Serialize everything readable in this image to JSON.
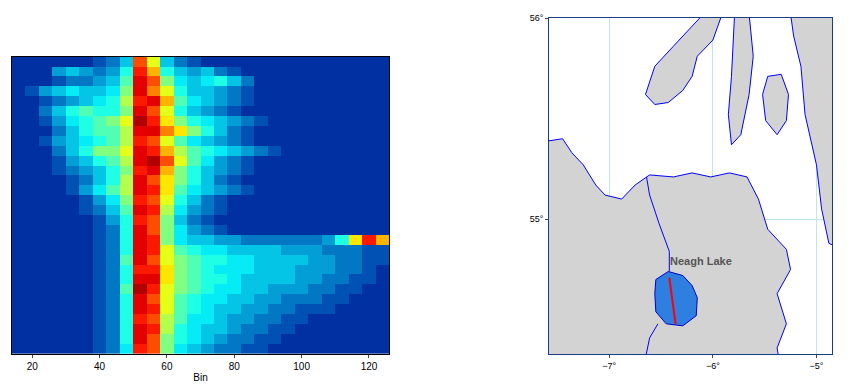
{
  "chart_data": [
    {
      "type": "heatmap",
      "xlabel": "Bin",
      "x": [
        16,
        20,
        24,
        28,
        32,
        36,
        40,
        44,
        48,
        52,
        56,
        60,
        64,
        68,
        72,
        76,
        80,
        84,
        88,
        92,
        96,
        100,
        104,
        108,
        112,
        116,
        120,
        124
      ],
      "xlim": [
        14,
        126
      ],
      "xticks": [
        20,
        40,
        60,
        80,
        100,
        120
      ],
      "ylim": [
        29.5,
        -0.5
      ],
      "tick_labels": "x",
      "zlim": [
        0,
        10
      ],
      "cells": [
        [
          1,
          1,
          1,
          1,
          1,
          1,
          1.5,
          2,
          3,
          8,
          6,
          3,
          2,
          1.5,
          1,
          1,
          1,
          1,
          1,
          1,
          1,
          1,
          1,
          1,
          1,
          1,
          1,
          1
        ],
        [
          1,
          1,
          1,
          2.5,
          3,
          2.5,
          2,
          2.5,
          4,
          8.5,
          7,
          4,
          3,
          2.5,
          3,
          2,
          1.5,
          1,
          1,
          1,
          1,
          1,
          1,
          1,
          1,
          1,
          1,
          1
        ],
        [
          1,
          1,
          1,
          1.5,
          2,
          2,
          2.5,
          3,
          4.5,
          9,
          8,
          5,
          3.5,
          3,
          3.5,
          4,
          3,
          2,
          1,
          1,
          1,
          1,
          1,
          1,
          1,
          1,
          1,
          1
        ],
        [
          1,
          1.5,
          2.5,
          3,
          3.5,
          3,
          3,
          3.5,
          5,
          9,
          7.5,
          6,
          4,
          3,
          3,
          2.5,
          2,
          1.5,
          1,
          1,
          1,
          1,
          1,
          1,
          1,
          1,
          1,
          1
        ],
        [
          1,
          1,
          1.5,
          2,
          2.5,
          3,
          3.5,
          4,
          5.5,
          8.5,
          9,
          7,
          4.5,
          3.5,
          3,
          2.5,
          2,
          1.5,
          1,
          1,
          1,
          1,
          1,
          1,
          1,
          1,
          1,
          1
        ],
        [
          1,
          1,
          2,
          3,
          4,
          4.5,
          4,
          4,
          5,
          9,
          8,
          6,
          4,
          3,
          2.5,
          2,
          1.5,
          1,
          1,
          1,
          1,
          1,
          1,
          1,
          1,
          1,
          1,
          1
        ],
        [
          1,
          1,
          1.5,
          2.5,
          3.5,
          4,
          4.5,
          5,
          6,
          9.5,
          8.5,
          6.5,
          5,
          4,
          3.5,
          3,
          2.5,
          2,
          1.5,
          1,
          1,
          1,
          1,
          1,
          1,
          1,
          1,
          1
        ],
        [
          1,
          1,
          1,
          2,
          3,
          4,
          4.5,
          4.5,
          5.5,
          9,
          9,
          7.5,
          6.5,
          5,
          4,
          3,
          2,
          1.5,
          1,
          1,
          1,
          1,
          1,
          1,
          1,
          1,
          1,
          1
        ],
        [
          1,
          1,
          1.5,
          2.5,
          3,
          3.5,
          4,
          4.5,
          5.5,
          8.5,
          8,
          6,
          4.5,
          3.5,
          3,
          2.5,
          2,
          1.5,
          1,
          1,
          1,
          1,
          1,
          1,
          1,
          1,
          1,
          1
        ],
        [
          1,
          1,
          1,
          2,
          3,
          4,
          5,
          5,
          6,
          9,
          8.5,
          7,
          5.5,
          4.5,
          4,
          3.5,
          3,
          2.5,
          2,
          1.5,
          1,
          1,
          1,
          1,
          1,
          1,
          1,
          1
        ],
        [
          1,
          1,
          1,
          1.5,
          2.5,
          3,
          4,
          4.5,
          5.5,
          9,
          9.5,
          8,
          6,
          4.5,
          3.5,
          2.5,
          2,
          1.5,
          1,
          1,
          1,
          1,
          1,
          1,
          1,
          1,
          1,
          1
        ],
        [
          1,
          1,
          1,
          1.5,
          2,
          2.5,
          3,
          4,
          5,
          8.5,
          9,
          7,
          5,
          4,
          3,
          2.5,
          2,
          1.5,
          1,
          1,
          1,
          1,
          1,
          1,
          1,
          1,
          1,
          1
        ],
        [
          1,
          1,
          1,
          1,
          1.5,
          2,
          3,
          4,
          5.5,
          9,
          8,
          6.5,
          5,
          4,
          3,
          2,
          1.5,
          1,
          1,
          1,
          1,
          1,
          1,
          1,
          1,
          1,
          1,
          1
        ],
        [
          1,
          1,
          1,
          1,
          1.5,
          2.5,
          3.5,
          4.5,
          5.5,
          9,
          8.5,
          6.5,
          4.5,
          3.5,
          3,
          2.5,
          2,
          1.5,
          1,
          1,
          1,
          1,
          1,
          1,
          1,
          1,
          1,
          1
        ],
        [
          1,
          1,
          1,
          1,
          1,
          1.5,
          2.5,
          3.5,
          5,
          8.5,
          8,
          6,
          4,
          3,
          2,
          1.5,
          1,
          1,
          1,
          1,
          1,
          1,
          1,
          1,
          1,
          1,
          1,
          1
        ],
        [
          1,
          1,
          1,
          1,
          1,
          1.5,
          2,
          3,
          4.5,
          9,
          8.5,
          5.5,
          3.5,
          2.5,
          2,
          1.5,
          1,
          1,
          1,
          1,
          1,
          1,
          1,
          1,
          1,
          1,
          1,
          1
        ],
        [
          1,
          1,
          1,
          1,
          1,
          1,
          1.5,
          2.5,
          4,
          8.5,
          8,
          5,
          3,
          2,
          1.5,
          1,
          1,
          1,
          1,
          1,
          1,
          1,
          1,
          1,
          1,
          1,
          1,
          1
        ],
        [
          1,
          1,
          1,
          1,
          1,
          1,
          1.5,
          2,
          4,
          9,
          8,
          5,
          3.5,
          2.5,
          2,
          1.5,
          1,
          1,
          1,
          1,
          1,
          1,
          1,
          1,
          1,
          1,
          1,
          1
        ],
        [
          1,
          1,
          1,
          1,
          1,
          1,
          1.5,
          2,
          4,
          9,
          8.5,
          5,
          3.5,
          3,
          3,
          2.5,
          2.5,
          2,
          2,
          2,
          2,
          2,
          2,
          2.5,
          4,
          6.5,
          8.5,
          7
        ],
        [
          1,
          1,
          1,
          1,
          1,
          1,
          1.5,
          2,
          4,
          9,
          8.5,
          6,
          4.5,
          4,
          3.5,
          3.5,
          3,
          3,
          3,
          3,
          2.5,
          2.5,
          2.5,
          2,
          2,
          2,
          1.5,
          1.5
        ],
        [
          1,
          1,
          1,
          1,
          1,
          1,
          1.5,
          2,
          4.5,
          9,
          8,
          6,
          5,
          4.5,
          4,
          4,
          3.5,
          3.5,
          3,
          3,
          3,
          3,
          2.5,
          2.5,
          2,
          2,
          1.5,
          1.5
        ],
        [
          1,
          1,
          1,
          1,
          1,
          1,
          1.5,
          2,
          4,
          8.5,
          8.5,
          6.5,
          5,
          4.5,
          4,
          3.5,
          3.5,
          3.5,
          3,
          3,
          3,
          2.5,
          2.5,
          2.5,
          2,
          2,
          1.5,
          1
        ],
        [
          1,
          1,
          1,
          1,
          1,
          1,
          1.5,
          2,
          4,
          9,
          9,
          6.5,
          5,
          4.5,
          4,
          4,
          3.5,
          3,
          3,
          3,
          3,
          2.5,
          2.5,
          2,
          2,
          1.5,
          1.5,
          1
        ],
        [
          1,
          1,
          1,
          1,
          1,
          1,
          1.5,
          2,
          4.5,
          9.5,
          8.5,
          6,
          5,
          4.5,
          4,
          3.5,
          3.5,
          3,
          3,
          2.5,
          2.5,
          2.5,
          2,
          2,
          1.5,
          1.5,
          1,
          1
        ],
        [
          1,
          1,
          1,
          1,
          1,
          1,
          1.5,
          2,
          4,
          9,
          8,
          6,
          4.5,
          4,
          3.5,
          3.5,
          3,
          3,
          2.5,
          2.5,
          2,
          2,
          2,
          1.5,
          1.5,
          1,
          1,
          1
        ],
        [
          1,
          1,
          1,
          1,
          1,
          1,
          1.5,
          2,
          4,
          9,
          8.5,
          6,
          4.5,
          4,
          3.5,
          3,
          3,
          2.5,
          2.5,
          2,
          2,
          1.5,
          1.5,
          1.5,
          1,
          1,
          1,
          1
        ],
        [
          1,
          1,
          1,
          1,
          1,
          1,
          1.5,
          2,
          4,
          8.5,
          8,
          5.5,
          4.5,
          3.5,
          3.5,
          3,
          2.5,
          2.5,
          2,
          2,
          1.5,
          1.5,
          1,
          1,
          1,
          1,
          1,
          1
        ],
        [
          1,
          1,
          1,
          1,
          1,
          1,
          1.5,
          2,
          4,
          9,
          8.5,
          5.5,
          4,
          3.5,
          3,
          3,
          2.5,
          2,
          2,
          1.5,
          1.5,
          1,
          1,
          1,
          1,
          1,
          1,
          1
        ],
        [
          1,
          1,
          1,
          1,
          1,
          1,
          1.5,
          2,
          4,
          9,
          8,
          5,
          4,
          3.5,
          3,
          2.5,
          2,
          2,
          1.5,
          1.5,
          1,
          1,
          1,
          1,
          1,
          1,
          1,
          1
        ],
        [
          1,
          1,
          1,
          1,
          1,
          1,
          1.5,
          2,
          3.5,
          8.5,
          8,
          5,
          3.5,
          3,
          2.5,
          2,
          2,
          1.5,
          1.5,
          1,
          1,
          1,
          1,
          1,
          1,
          1,
          1,
          1
        ]
      ]
    },
    {
      "type": "map",
      "xlim": [
        -7.58,
        -4.85
      ],
      "ylim": [
        54.33,
        56
      ],
      "xticks": [
        {
          "value": -7,
          "label": "−7°"
        },
        {
          "value": -6,
          "label": "−6°"
        },
        {
          "value": -5,
          "label": "−5°"
        }
      ],
      "yticks": [
        {
          "value": 55,
          "label": "55°"
        },
        {
          "value": 56,
          "label": "56°"
        }
      ],
      "grid": true,
      "land": [
        {
          "lon": [
            -7.7,
            -7.45,
            -7.36,
            -7.25,
            -7.13,
            -7.04,
            -6.88,
            -6.75,
            -6.61,
            -6.38,
            -6.2,
            -6.02,
            -5.84,
            -5.67,
            -5.56,
            -5.47,
            -5.29,
            -5.25,
            -5.38,
            -5.29,
            -5.38,
            -5.34,
            -7.7
          ],
          "lat": [
            55.38,
            55.4,
            55.33,
            55.27,
            55.17,
            55.12,
            55.1,
            55.17,
            55.22,
            55.21,
            55.23,
            55.21,
            55.23,
            55.21,
            55.1,
            54.95,
            54.85,
            54.75,
            54.63,
            54.48,
            54.36,
            54.24,
            54.24
          ]
        },
        {
          "lon": [
            -6.65,
            -6.56,
            -6.38,
            -6.2,
            -6.09,
            -5.91,
            -6.0,
            -6.15,
            -6.2,
            -6.29,
            -6.43,
            -6.56
          ],
          "lat": [
            55.62,
            55.76,
            55.86,
            55.96,
            56.02,
            56.02,
            55.89,
            55.81,
            55.71,
            55.64,
            55.58,
            55.57
          ]
        },
        {
          "lon": [
            -5.79,
            -5.65,
            -5.61,
            -5.65,
            -5.73,
            -5.82,
            -5.85,
            -5.82
          ],
          "lat": [
            56.02,
            56.02,
            55.81,
            55.62,
            55.42,
            55.37,
            55.52,
            55.71
          ]
        },
        {
          "lon": [
            -5.47,
            -5.34,
            -5.27,
            -5.29,
            -5.38,
            -5.49,
            -5.52
          ],
          "lat": [
            55.71,
            55.72,
            55.62,
            55.49,
            55.42,
            55.49,
            55.62
          ]
        },
        {
          "lon": [
            -5.25,
            -4.67,
            -4.67,
            -4.88,
            -4.95,
            -5.0,
            -5.11,
            -5.15,
            -5.22
          ],
          "lat": [
            56.02,
            56.02,
            54.83,
            54.88,
            55.05,
            55.27,
            55.52,
            55.76,
            55.91
          ]
        }
      ],
      "rivers": [
        {
          "lon": [
            -6.42,
            -6.42,
            -6.52,
            -6.61,
            -6.64
          ],
          "lat": [
            54.74,
            54.84,
            54.98,
            55.12,
            55.21
          ]
        },
        {
          "lon": [
            -6.53,
            -6.61,
            -6.65
          ],
          "lat": [
            54.48,
            54.41,
            54.31
          ]
        }
      ],
      "lake": {
        "name": "Neagh Lake",
        "color": "#2f7fe0",
        "lon": [
          -6.55,
          -6.43,
          -6.29,
          -6.2,
          -6.15,
          -6.16,
          -6.29,
          -6.45,
          -6.55,
          -6.56
        ],
        "lat": [
          54.7,
          54.74,
          54.72,
          54.67,
          54.61,
          54.52,
          54.47,
          54.48,
          54.54,
          54.63
        ],
        "label_lon": -6.11,
        "label_lat": 54.79
      },
      "transect": {
        "color": "#ff0000",
        "lon": [
          -6.42,
          -6.36
        ],
        "lat": [
          54.71,
          54.48
        ]
      }
    }
  ]
}
